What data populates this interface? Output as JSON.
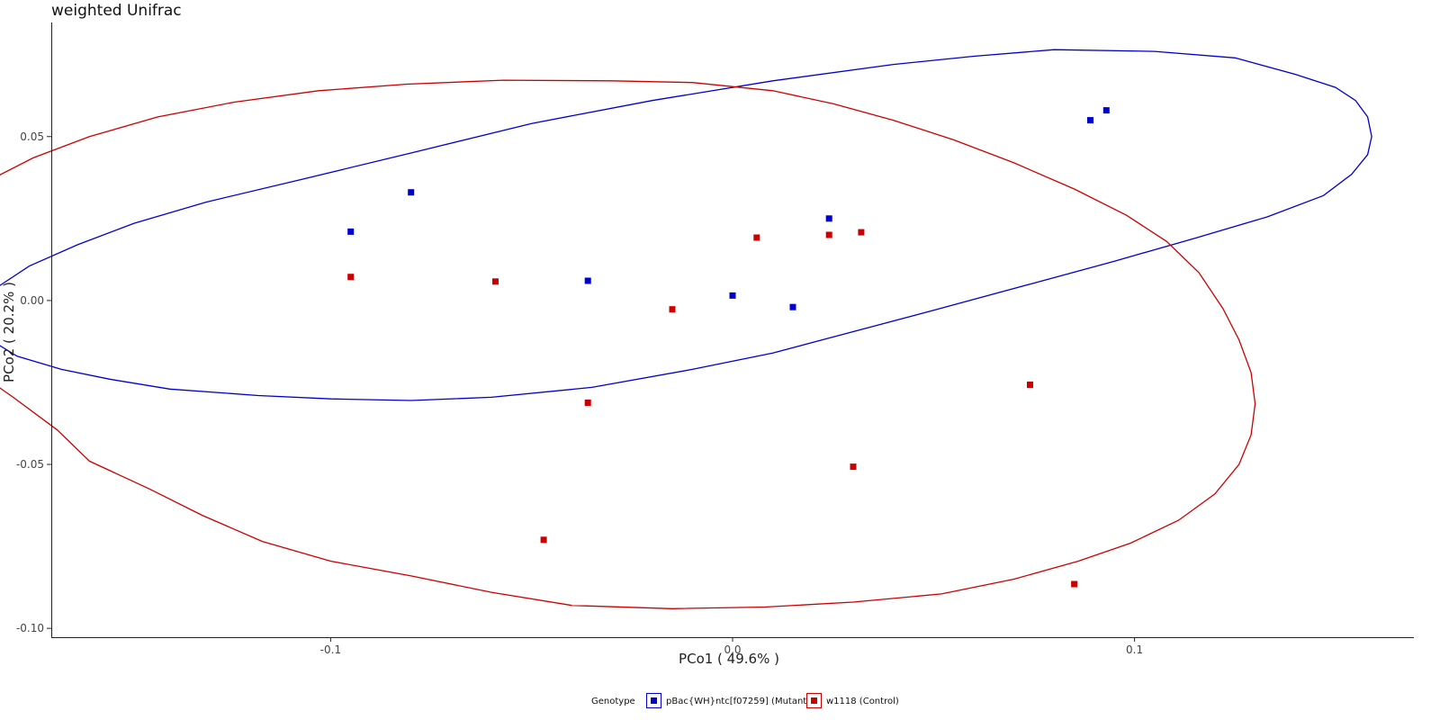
{
  "chart_data": {
    "type": "scatter",
    "title": "weighted Unifrac",
    "xlabel": "PCo1 ( 49.6% )",
    "ylabel": "PCo2 ( 20.2% )",
    "xlim": [
      -0.1695,
      0.1695
    ],
    "ylim": [
      -0.1027,
      0.0848
    ],
    "x_ticks": [
      -0.1,
      0.0,
      0.1
    ],
    "x_tick_labels": [
      "-0.1",
      "0.0",
      "0.1"
    ],
    "y_ticks": [
      -0.1,
      -0.05,
      0.0,
      0.05
    ],
    "y_tick_labels": [
      "-0.10",
      "-0.05",
      "0.00",
      "0.05"
    ],
    "grid": false,
    "legend_position": "bottom",
    "legend_title": "Genotype",
    "series": [
      {
        "name": "pBac{WH}ntc[f07259] (Mutant)",
        "color": "#0000cc",
        "points": [
          {
            "x": 0.089,
            "y": 0.055
          },
          {
            "x": 0.093,
            "y": 0.058
          },
          {
            "x": -0.08,
            "y": 0.033
          },
          {
            "x": -0.095,
            "y": 0.021
          },
          {
            "x": 0.024,
            "y": 0.025
          },
          {
            "x": -0.036,
            "y": 0.006
          },
          {
            "x": 0.0,
            "y": 0.0015
          },
          {
            "x": 0.015,
            "y": -0.002
          }
        ],
        "ellipse": [
          {
            "x": 0.08,
            "y": 0.0765
          },
          {
            "x": 0.105,
            "y": 0.076
          },
          {
            "x": 0.125,
            "y": 0.074
          },
          {
            "x": 0.14,
            "y": 0.069
          },
          {
            "x": 0.15,
            "y": 0.065
          },
          {
            "x": 0.155,
            "y": 0.061
          },
          {
            "x": 0.158,
            "y": 0.056
          },
          {
            "x": 0.159,
            "y": 0.05
          },
          {
            "x": 0.158,
            "y": 0.0445
          },
          {
            "x": 0.154,
            "y": 0.0385
          },
          {
            "x": 0.147,
            "y": 0.032
          },
          {
            "x": 0.133,
            "y": 0.0255
          },
          {
            "x": 0.115,
            "y": 0.019
          },
          {
            "x": 0.095,
            "y": 0.012
          },
          {
            "x": 0.074,
            "y": 0.005
          },
          {
            "x": 0.05,
            "y": -0.003
          },
          {
            "x": 0.03,
            "y": -0.0095
          },
          {
            "x": 0.01,
            "y": -0.016
          },
          {
            "x": -0.01,
            "y": -0.021
          },
          {
            "x": -0.035,
            "y": -0.0265
          },
          {
            "x": -0.06,
            "y": -0.0295
          },
          {
            "x": -0.08,
            "y": -0.0305
          },
          {
            "x": -0.1,
            "y": -0.03
          },
          {
            "x": -0.118,
            "y": -0.029
          },
          {
            "x": -0.14,
            "y": -0.027
          },
          {
            "x": -0.155,
            "y": -0.024
          },
          {
            "x": -0.167,
            "y": -0.021
          },
          {
            "x": -0.178,
            "y": -0.017
          },
          {
            "x": -0.184,
            "y": -0.0125
          },
          {
            "x": -0.187,
            "y": -0.007
          },
          {
            "x": -0.187,
            "y": -0.002
          },
          {
            "x": -0.183,
            "y": 0.004
          },
          {
            "x": -0.175,
            "y": 0.0105
          },
          {
            "x": -0.163,
            "y": 0.017
          },
          {
            "x": -0.149,
            "y": 0.0235
          },
          {
            "x": -0.131,
            "y": 0.03
          },
          {
            "x": -0.107,
            "y": 0.037
          },
          {
            "x": -0.08,
            "y": 0.045
          },
          {
            "x": -0.05,
            "y": 0.054
          },
          {
            "x": -0.02,
            "y": 0.061
          },
          {
            "x": 0.01,
            "y": 0.067
          },
          {
            "x": 0.04,
            "y": 0.072
          },
          {
            "x": 0.06,
            "y": 0.0745
          },
          {
            "x": 0.08,
            "y": 0.0765
          }
        ]
      },
      {
        "name": "w1118 (Control)",
        "color": "#cc0000",
        "points": [
          {
            "x": -0.095,
            "y": 0.0072
          },
          {
            "x": -0.059,
            "y": 0.0058
          },
          {
            "x": -0.015,
            "y": -0.0027
          },
          {
            "x": 0.006,
            "y": 0.0192
          },
          {
            "x": 0.024,
            "y": 0.02
          },
          {
            "x": 0.032,
            "y": 0.0208
          },
          {
            "x": -0.036,
            "y": -0.0312
          },
          {
            "x": 0.074,
            "y": -0.0257
          },
          {
            "x": 0.03,
            "y": -0.0507
          },
          {
            "x": -0.047,
            "y": -0.073
          },
          {
            "x": 0.085,
            "y": -0.0865
          }
        ],
        "ellipse": [
          {
            "x": -0.03,
            "y": 0.067
          },
          {
            "x": -0.01,
            "y": 0.0665
          },
          {
            "x": 0.01,
            "y": 0.064
          },
          {
            "x": 0.025,
            "y": 0.06
          },
          {
            "x": 0.04,
            "y": 0.055
          },
          {
            "x": 0.055,
            "y": 0.049
          },
          {
            "x": 0.07,
            "y": 0.042
          },
          {
            "x": 0.085,
            "y": 0.034
          },
          {
            "x": 0.098,
            "y": 0.026
          },
          {
            "x": 0.108,
            "y": 0.018
          },
          {
            "x": 0.116,
            "y": 0.0085
          },
          {
            "x": 0.122,
            "y": -0.0025
          },
          {
            "x": 0.126,
            "y": -0.012
          },
          {
            "x": 0.129,
            "y": -0.022
          },
          {
            "x": 0.13,
            "y": -0.0315
          },
          {
            "x": 0.129,
            "y": -0.041
          },
          {
            "x": 0.126,
            "y": -0.05
          },
          {
            "x": 0.12,
            "y": -0.059
          },
          {
            "x": 0.111,
            "y": -0.067
          },
          {
            "x": 0.099,
            "y": -0.074
          },
          {
            "x": 0.086,
            "y": -0.0795
          },
          {
            "x": 0.07,
            "y": -0.085
          },
          {
            "x": 0.052,
            "y": -0.0895
          },
          {
            "x": 0.03,
            "y": -0.092
          },
          {
            "x": 0.008,
            "y": -0.0935
          },
          {
            "x": -0.015,
            "y": -0.094
          },
          {
            "x": -0.04,
            "y": -0.093
          },
          {
            "x": -0.06,
            "y": -0.089
          },
          {
            "x": -0.08,
            "y": -0.084
          },
          {
            "x": -0.1,
            "y": -0.0795
          },
          {
            "x": -0.117,
            "y": -0.0735
          },
          {
            "x": -0.132,
            "y": -0.0655
          },
          {
            "x": -0.145,
            "y": -0.0575
          },
          {
            "x": -0.16,
            "y": -0.049
          },
          {
            "x": -0.168,
            "y": -0.0395
          },
          {
            "x": -0.179,
            "y": -0.0295
          },
          {
            "x": -0.19,
            "y": -0.02
          },
          {
            "x": -0.198,
            "y": -0.01
          },
          {
            "x": -0.204,
            "y": 0.0
          },
          {
            "x": -0.204,
            "y": 0.01
          },
          {
            "x": -0.2,
            "y": 0.019
          },
          {
            "x": -0.194,
            "y": 0.028
          },
          {
            "x": -0.186,
            "y": 0.036
          },
          {
            "x": -0.174,
            "y": 0.0435
          },
          {
            "x": -0.16,
            "y": 0.05
          },
          {
            "x": -0.143,
            "y": 0.056
          },
          {
            "x": -0.124,
            "y": 0.0605
          },
          {
            "x": -0.103,
            "y": 0.064
          },
          {
            "x": -0.081,
            "y": 0.066
          },
          {
            "x": -0.057,
            "y": 0.0672
          },
          {
            "x": -0.03,
            "y": 0.067
          }
        ]
      }
    ]
  }
}
